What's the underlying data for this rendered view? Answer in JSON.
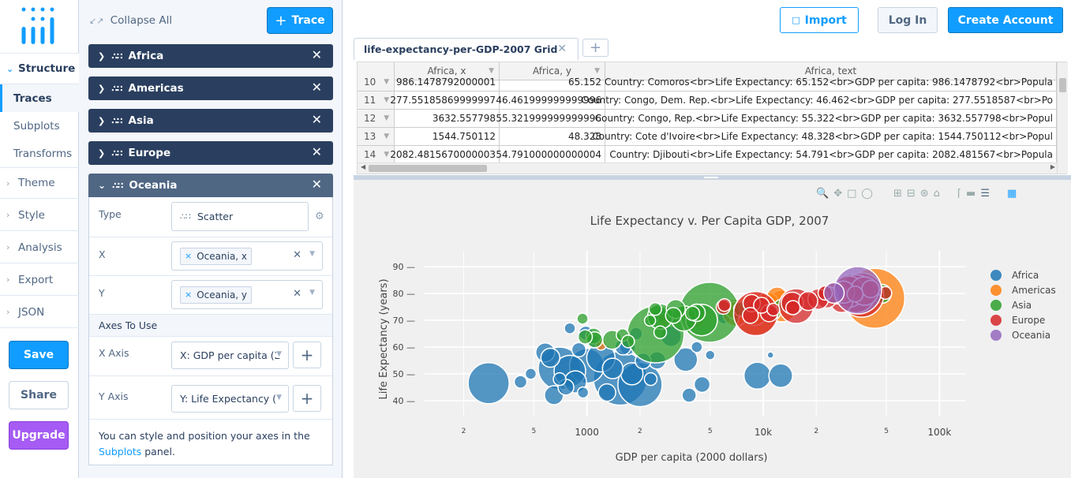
{
  "nav": {
    "groups": [
      {
        "label": "Structure"
      },
      {
        "label": "Theme"
      },
      {
        "label": "Style"
      },
      {
        "label": "Analysis"
      },
      {
        "label": "Export"
      },
      {
        "label": "JSON"
      }
    ],
    "structure_items": [
      {
        "label": "Traces"
      },
      {
        "label": "Subplots"
      },
      {
        "label": "Transforms"
      }
    ],
    "save": "Save",
    "share": "Share",
    "upgrade": "Upgrade"
  },
  "panel": {
    "collapse_all": "Collapse All",
    "trace_button": "Trace",
    "traces": [
      {
        "name": "Africa"
      },
      {
        "name": "Americas"
      },
      {
        "name": "Asia"
      },
      {
        "name": "Europe"
      },
      {
        "name": "Oceania"
      }
    ],
    "oceania": {
      "type_label": "Type",
      "type_value": "Scatter",
      "x_label": "X",
      "x_value": "Oceania, x",
      "y_label": "Y",
      "y_value": "Oceania, y",
      "axes_section": "Axes To Use",
      "x_axis_label": "X Axis",
      "x_axis_value": "X: GDP per capita (2",
      "y_axis_label": "Y Axis",
      "y_axis_value": "Y: Life Expectancy (",
      "help_text": "You can style and position your axes in the",
      "help_link": "Subplots",
      "help_end": "panel."
    }
  },
  "header": {
    "import": "Import",
    "login": "Log In",
    "create_account": "Create Account"
  },
  "grid": {
    "tab_title": "life-expectancy-per-GDP-2007 Grid",
    "columns": [
      "Africa, x",
      "Africa, y",
      "Africa, text"
    ],
    "rows": [
      {
        "n": "10",
        "x": "986.1478792000001",
        "y": "65.152",
        "text": "Country: Comoros<br>Life Expectancy: 65.152<br>GDP per capita: 986.1478792<br>Popula"
      },
      {
        "n": "11",
        "x": "277.55185869999997",
        "y": "46.461999999999996",
        "text": "Country: Congo, Dem. Rep.<br>Life Expectancy: 46.462<br>GDP per capita: 277.5518587<br>Po"
      },
      {
        "n": "12",
        "x": "3632.557798",
        "y": "55.321999999999996",
        "text": "Country: Congo, Rep.<br>Life Expectancy: 55.322<br>GDP per capita: 3632.557798<br>Popul"
      },
      {
        "n": "13",
        "x": "1544.750112",
        "y": "48.328",
        "text": "Country: Cote d'Ivoire<br>Life Expectancy: 48.328<br>GDP per capita: 1544.750112<br>Popul"
      },
      {
        "n": "14",
        "x": "2082.4815670000003",
        "y": "54.791000000000004",
        "text": "Country: Djibouti<br>Life Expectancy: 54.791<br>GDP per capita: 2082.481567<br>Popula"
      }
    ]
  },
  "chart_data": {
    "type": "scatter",
    "title": "Life Expectancy v. Per Capita GDP, 2007",
    "xlabel": "GDP per capita (2000 dollars)",
    "ylabel": "Life Expectancy (years)",
    "x_scale": "log",
    "xlim": [
      120,
      140000
    ],
    "ylim": [
      37,
      93
    ],
    "y_ticks": [
      40,
      50,
      60,
      70,
      80,
      90
    ],
    "x_tick_labels": [
      "2",
      "5",
      "1000",
      "2",
      "5",
      "10k",
      "2",
      "5",
      "100k"
    ],
    "x_tick_values": [
      200,
      500,
      1000,
      2000,
      5000,
      10000,
      20000,
      50000,
      100000
    ],
    "grid": true,
    "legend_position": "right",
    "series": [
      {
        "name": "Africa",
        "color": "#1f77b4",
        "points": [
          [
            277,
            46.5,
            26
          ],
          [
            1545,
            48.3,
            34
          ],
          [
            2082,
            54.8,
            10
          ],
          [
            986,
            65.2,
            9
          ],
          [
            3632,
            55.3,
            15
          ],
          [
            12570,
            49.3,
            15
          ],
          [
            9269,
            49.3,
            17
          ],
          [
            700,
            52,
            27
          ],
          [
            800,
            51,
            20
          ],
          [
            1000,
            53,
            22
          ],
          [
            1200,
            56,
            18
          ],
          [
            580,
            58,
            12
          ],
          [
            860,
            47,
            14
          ],
          [
            1300,
            43,
            11
          ],
          [
            650,
            42,
            12
          ],
          [
            4500,
            46,
            10
          ],
          [
            3800,
            42,
            9
          ],
          [
            1800,
            50,
            14
          ],
          [
            2500,
            55,
            11
          ],
          [
            420,
            47,
            8
          ],
          [
            480,
            50,
            7
          ],
          [
            900,
            59,
            9
          ],
          [
            1100,
            62,
            8
          ],
          [
            1700,
            60,
            10
          ],
          [
            620,
            56,
            12
          ],
          [
            760,
            45,
            10
          ],
          [
            2600,
            72,
            9
          ],
          [
            3000,
            64,
            13
          ],
          [
            5000,
            57,
            6
          ],
          [
            950,
            43,
            7
          ],
          [
            1400,
            52,
            13
          ],
          [
            1600,
            60,
            10
          ],
          [
            700,
            48,
            8
          ],
          [
            11000,
            57,
            4
          ],
          [
            6000,
            71,
            8
          ],
          [
            7500,
            73,
            9
          ],
          [
            4200,
            60,
            7
          ],
          [
            1900,
            65,
            8
          ],
          [
            2300,
            48,
            8
          ],
          [
            800,
            67,
            7
          ],
          [
            2000,
            46,
            28
          ]
        ]
      },
      {
        "name": "Americas",
        "color": "#ff7f0e",
        "points": [
          [
            42952,
            78.2,
            38
          ],
          [
            12779,
            75.3,
            20
          ],
          [
            36319,
            80.7,
            17
          ],
          [
            9065,
            72.4,
            27
          ],
          [
            7007,
            72.9,
            17
          ],
          [
            11977,
            78.6,
            13
          ],
          [
            6873,
            73.7,
            11
          ],
          [
            4172,
            70.3,
            10
          ],
          [
            3822,
            71.9,
            8
          ],
          [
            10611,
            76.2,
            14
          ],
          [
            8948,
            72.8,
            16
          ],
          [
            1201,
            60.9,
            7
          ],
          [
            3548,
            72.9,
            9
          ],
          [
            2749,
            70.2,
            8
          ]
        ]
      },
      {
        "name": "Asia",
        "color": "#2ca02c",
        "points": [
          [
            4959,
            73,
            38
          ],
          [
            2452,
            64.7,
            36
          ],
          [
            3540,
            70.7,
            16
          ],
          [
            1391,
            62.7,
            12
          ],
          [
            2605,
            71.4,
            16
          ],
          [
            31656,
            82.6,
            16
          ],
          [
            4471,
            70.1,
            20
          ],
          [
            3190,
            74.2,
            12
          ],
          [
            1091,
            64.1,
            10
          ],
          [
            978,
            63.8,
            9
          ],
          [
            1593,
            64.5,
            8
          ],
          [
            1713,
            62.1,
            8
          ],
          [
            4187,
            72.8,
            11
          ],
          [
            2441,
            74.2,
            8
          ],
          [
            944,
            70.6,
            7
          ],
          [
            7458,
            74.2,
            9
          ],
          [
            12451,
            75.6,
            7
          ],
          [
            47143,
            79.9,
            12
          ],
          [
            36797,
            80.2,
            7
          ],
          [
            25523,
            78.4,
            9
          ],
          [
            21655,
            79.8,
            8
          ],
          [
            11606,
            72.4,
            7
          ],
          [
            28718,
            79.4,
            9
          ],
          [
            3970,
            72.6,
            9
          ],
          [
            1107,
            62.7,
            10
          ],
          [
            2280,
            69.9,
            7
          ],
          [
            3095,
            71.8,
            10
          ],
          [
            2605,
            65.5,
            8
          ]
        ]
      },
      {
        "name": "Europe",
        "color": "#d62728",
        "points": [
          [
            9065,
            72.5,
            28
          ],
          [
            15389,
            75.3,
            22
          ],
          [
            36126,
            79.4,
            28
          ],
          [
            33692,
            79.9,
            24
          ],
          [
            37506,
            80.9,
            18
          ],
          [
            30470,
            80.7,
            20
          ],
          [
            27782,
            77,
            14
          ],
          [
            25768,
            80.2,
            14
          ],
          [
            28570,
            80.5,
            14
          ],
          [
            20510,
            77.9,
            13
          ],
          [
            8605,
            76.4,
            11
          ],
          [
            14619,
            76.4,
            14
          ],
          [
            9787,
            75.6,
            10
          ],
          [
            18008,
            77.2,
            12
          ],
          [
            22833,
            78.7,
            14
          ],
          [
            10808,
            72.7,
            11
          ],
          [
            5937,
            74.9,
            9
          ],
          [
            11416,
            74,
            8
          ],
          [
            6025,
            75.7,
            8
          ],
          [
            8458,
            71.8,
            10
          ],
          [
            14745,
            74.7,
            9
          ],
          [
            22466,
            80.2,
            9
          ],
          [
            40676,
            81.7,
            11
          ],
          [
            33207,
            79.8,
            10
          ],
          [
            49357,
            80.2,
            8
          ]
        ]
      },
      {
        "name": "Oceania",
        "color": "#9467bd",
        "points": [
          [
            34435,
            81.2,
            30
          ],
          [
            25185,
            80.2,
            13
          ]
        ]
      }
    ]
  },
  "icons": {
    "logo": "plotly-logo-icon",
    "import": "upload-icon",
    "plus": "plus-icon",
    "close": "close-icon"
  },
  "colors": {
    "primary": "#119dff",
    "dark": "#2a3f5f",
    "upgrade": "#a55bf4"
  }
}
